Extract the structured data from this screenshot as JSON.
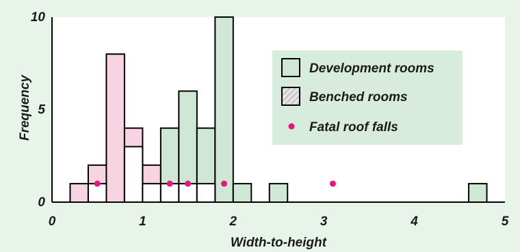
{
  "colors": {
    "background": "#e8f4ea",
    "plot_area": "#ffffff",
    "legend_box": "#d7ecdc",
    "development": "#cfe8d6",
    "benched_hatch_bg": "#e4e4e4",
    "benched_hatch_line": "#b8b8b8",
    "pink_bars": "#f8d3e1",
    "fatal_dot": "#e8157d",
    "stroke": "#000000"
  },
  "chart_data": {
    "type": "bar",
    "xlabel": "Width-to-height",
    "ylabel": "Frequency",
    "xlim": [
      0,
      5
    ],
    "ylim": [
      0,
      10
    ],
    "x_ticks": [
      "0",
      "1",
      "2",
      "3",
      "4",
      "5"
    ],
    "y_ticks": [
      "0",
      "5",
      "10"
    ],
    "bin_width": 0.2,
    "series": [
      {
        "name": "Development rooms",
        "bins": [
          {
            "x0": 1.2,
            "value": 4
          },
          {
            "x0": 1.4,
            "value": 6
          },
          {
            "x0": 1.6,
            "value": 4
          },
          {
            "x0": 1.8,
            "value": 10
          },
          {
            "x0": 2.0,
            "value": 1
          },
          {
            "x0": 2.4,
            "value": 1
          },
          {
            "x0": 4.6,
            "value": 1
          }
        ]
      },
      {
        "name": "Benched rooms",
        "bins": [
          {
            "x0": 0.2,
            "value": 1
          },
          {
            "x0": 0.4,
            "value": 2
          },
          {
            "x0": 0.6,
            "value": 8
          },
          {
            "x0": 0.8,
            "value": 4
          },
          {
            "x0": 1.0,
            "value": 2
          }
        ]
      },
      {
        "name": "Fatal roof falls",
        "bins": [
          {
            "x0": 0.4,
            "value": 1
          },
          {
            "x0": 0.8,
            "value": 3
          },
          {
            "x0": 1.0,
            "value": 1
          },
          {
            "x0": 1.2,
            "value": 1
          },
          {
            "x0": 1.4,
            "value": 1
          },
          {
            "x0": 1.6,
            "value": 1
          }
        ],
        "points": [
          {
            "x": 0.5,
            "y": 1
          },
          {
            "x": 1.3,
            "y": 1
          },
          {
            "x": 1.5,
            "y": 1
          },
          {
            "x": 1.9,
            "y": 1
          },
          {
            "x": 3.1,
            "y": 1
          }
        ]
      }
    ],
    "legend": [
      "Development rooms",
      "Benched rooms",
      "Fatal roof falls"
    ],
    "legend_position": "top-right",
    "grid": false
  }
}
